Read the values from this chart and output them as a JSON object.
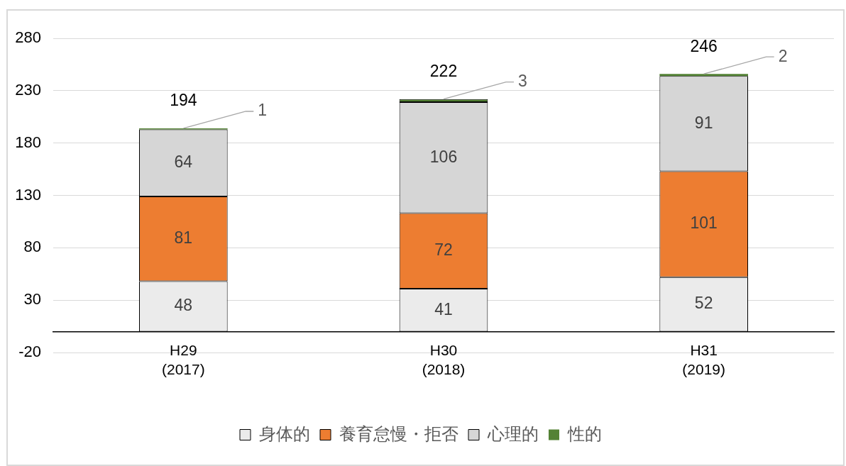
{
  "chart_data": {
    "type": "bar",
    "stacked": true,
    "categories": [
      "H29\n(2017)",
      "H30\n(2018)",
      "H31\n(2019)"
    ],
    "series": [
      {
        "name": "身体的",
        "color": "#ebebeb",
        "values": [
          48,
          41,
          52
        ]
      },
      {
        "name": "養育怠慢・拒否",
        "color": "#ed7d31",
        "values": [
          81,
          72,
          101
        ]
      },
      {
        "name": "心理的",
        "color": "#d6d6d6",
        "values": [
          64,
          106,
          91
        ]
      },
      {
        "name": "性的",
        "color": "#548235",
        "values": [
          1,
          3,
          2
        ]
      }
    ],
    "ylim": [
      -20,
      280
    ],
    "yticks": [
      -20,
      30,
      80,
      130,
      180,
      230,
      280
    ],
    "grid": "y",
    "legend": "bottom",
    "data_labels": true,
    "totals": [
      "194",
      "222",
      "246"
    ]
  }
}
